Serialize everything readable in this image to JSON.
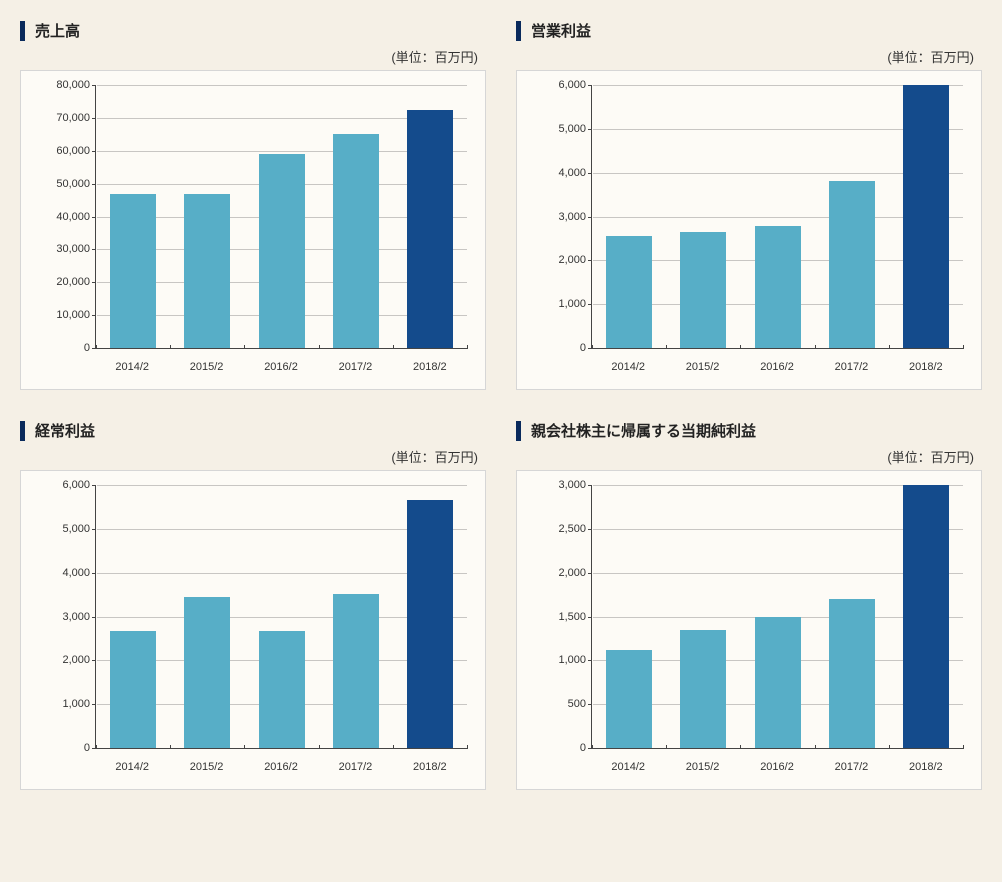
{
  "page": {
    "background_color": "#f5f0e6",
    "chart_background": "#fdfbf6",
    "chart_border": "#d6d6d6",
    "axis_color": "#444444",
    "grid_color": "rgba(100,100,100,0.35)",
    "title_bar_color": "#0a2a5c",
    "text_color": "#333333",
    "font_family": "Hiragino Kaku Gothic Pro, Meiryo, sans-serif",
    "title_fontsize": 15,
    "label_fontsize": 11
  },
  "unit_label": "(単位：百万円)",
  "categories": [
    "2014/2",
    "2015/2",
    "2016/2",
    "2017/2",
    "2018/2"
  ],
  "bar_colors_default": [
    "#57aec7",
    "#57aec7",
    "#57aec7",
    "#57aec7",
    "#144b8c"
  ],
  "charts": [
    {
      "id": "sales",
      "title": "売上高",
      "type": "bar",
      "ymax": 80000,
      "ytick_step": 10000,
      "values": [
        47000,
        47000,
        59000,
        65000,
        72500
      ],
      "bar_width": 0.62
    },
    {
      "id": "operating_profit",
      "title": "営業利益",
      "type": "bar",
      "ymax": 6000,
      "ytick_step": 1000,
      "values": [
        2550,
        2650,
        2780,
        3800,
        6000
      ],
      "bar_width": 0.62
    },
    {
      "id": "ordinary_profit",
      "title": "経常利益",
      "type": "bar",
      "ymax": 6000,
      "ytick_step": 1000,
      "values": [
        2680,
        3450,
        2680,
        3520,
        5650
      ],
      "bar_width": 0.62
    },
    {
      "id": "net_income",
      "title": "親会社株主に帰属する当期純利益",
      "type": "bar",
      "ymax": 3000,
      "ytick_step": 500,
      "values": [
        1120,
        1350,
        1500,
        1700,
        3000
      ],
      "bar_width": 0.62
    }
  ]
}
